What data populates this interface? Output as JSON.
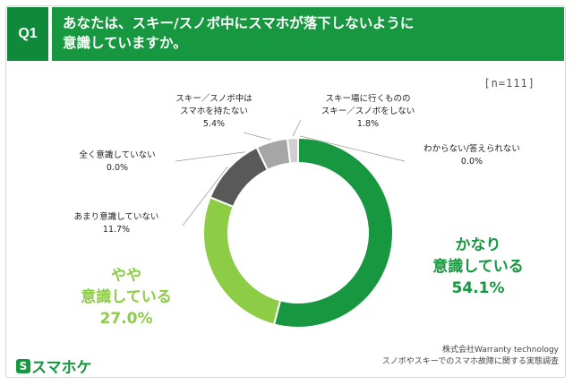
{
  "header": {
    "badge": "Q1",
    "question_line1": "あなたは、スキー/スノボ中にスマホが落下しないように",
    "question_line2": "意識していますか。"
  },
  "sample_size": "[n=111]",
  "chart_data": {
    "type": "pie",
    "donut": true,
    "title": "",
    "slices": [
      {
        "label_lines": [
          "かなり",
          "意識している"
        ],
        "value": 54.1,
        "value_text": "54.1%",
        "color": "#17973f"
      },
      {
        "label_lines": [
          "やや",
          "意識している"
        ],
        "value": 27.0,
        "value_text": "27.0%",
        "color": "#8dcc45"
      },
      {
        "label_lines": [
          "あまり意識していない"
        ],
        "value": 11.7,
        "value_text": "11.7%",
        "color": "#595959"
      },
      {
        "label_lines": [
          "全く意識していない"
        ],
        "value": 0.0,
        "value_text": "0.0%",
        "color": "#404040"
      },
      {
        "label_lines": [
          "スキー／スノボ中は",
          "スマホを持たない"
        ],
        "value": 5.4,
        "value_text": "5.4%",
        "color": "#a6a6a6"
      },
      {
        "label_lines": [
          "スキー場に行くものの",
          "スキー／スノボをしない"
        ],
        "value": 1.8,
        "value_text": "1.8%",
        "color": "#cfcfcf"
      },
      {
        "label_lines": [
          "わからない/答えられない"
        ],
        "value": 0.0,
        "value_text": "0.0%",
        "color": "#e6e6e6"
      }
    ]
  },
  "footer": {
    "logo_text": "スマホケ",
    "logo_mark": "S",
    "credit_line1": "株式会社Warranty technology",
    "credit_line2": "スノボやスキーでのスマホ故障に関する実態調査"
  }
}
